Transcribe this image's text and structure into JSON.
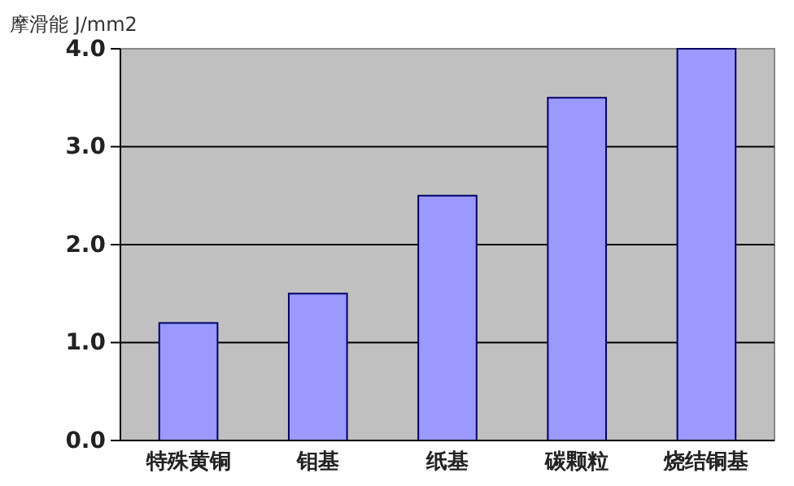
{
  "chart_data": {
    "type": "bar",
    "ylabel": "摩滑能 J/mm2",
    "categories": [
      "特殊黄铜",
      "钼基",
      "纸基",
      "碳颗粒",
      "烧结铜基"
    ],
    "values": [
      1.2,
      1.5,
      2.5,
      3.5,
      4.0
    ],
    "color": "#9999ff",
    "ylim": [
      0,
      4
    ],
    "yticks": [
      {
        "value": 0,
        "label": "0.0"
      },
      {
        "value": 1,
        "label": "1.0"
      },
      {
        "value": 2,
        "label": "2.0"
      },
      {
        "value": 3,
        "label": "3.0"
      },
      {
        "value": 4,
        "label": "4.0"
      }
    ],
    "grid": "y"
  }
}
